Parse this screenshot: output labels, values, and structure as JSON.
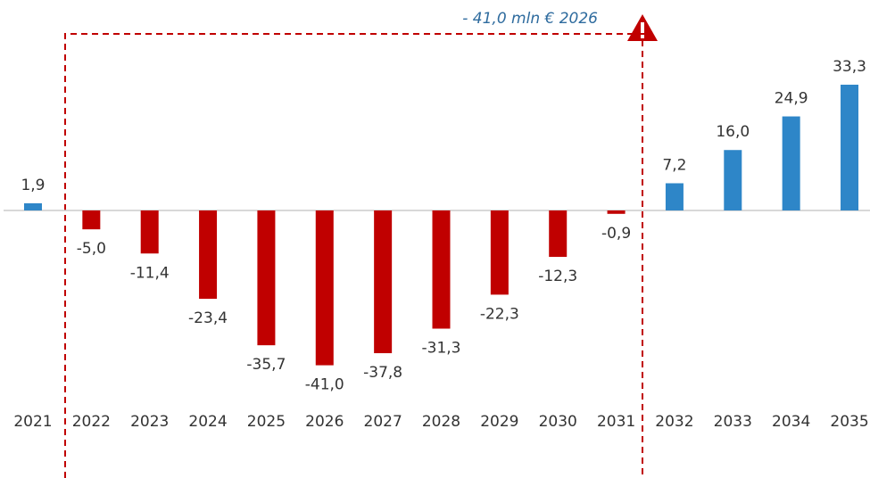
{
  "chart_data": {
    "type": "bar",
    "annotation": "- 41,0 mln € 2026",
    "categories": [
      "2021",
      "2022",
      "2023",
      "2024",
      "2025",
      "2026",
      "2027",
      "2028",
      "2029",
      "2030",
      "2031",
      "2032",
      "2033",
      "2034",
      "2035"
    ],
    "values": [
      1.9,
      -5.0,
      -11.4,
      -23.4,
      -35.7,
      -41.0,
      -37.8,
      -31.3,
      -22.3,
      -12.3,
      -0.9,
      7.2,
      16.0,
      24.9,
      33.3
    ],
    "value_labels": [
      "1,9",
      "-5,0",
      "-11,4",
      "-23,4",
      "-35,7",
      "-41,0",
      "-37,8",
      "-31,3",
      "-22,3",
      "-12,3",
      "-0,9",
      "7,2",
      "16,0",
      "24,9",
      "33,3"
    ],
    "colors": [
      "#2e86c8",
      "#c00000",
      "#c00000",
      "#c00000",
      "#c00000",
      "#c00000",
      "#c00000",
      "#c00000",
      "#c00000",
      "#c00000",
      "#c00000",
      "#2e86c8",
      "#2e86c8",
      "#2e86c8",
      "#2e86c8"
    ],
    "ylim": [
      -50,
      40
    ]
  }
}
